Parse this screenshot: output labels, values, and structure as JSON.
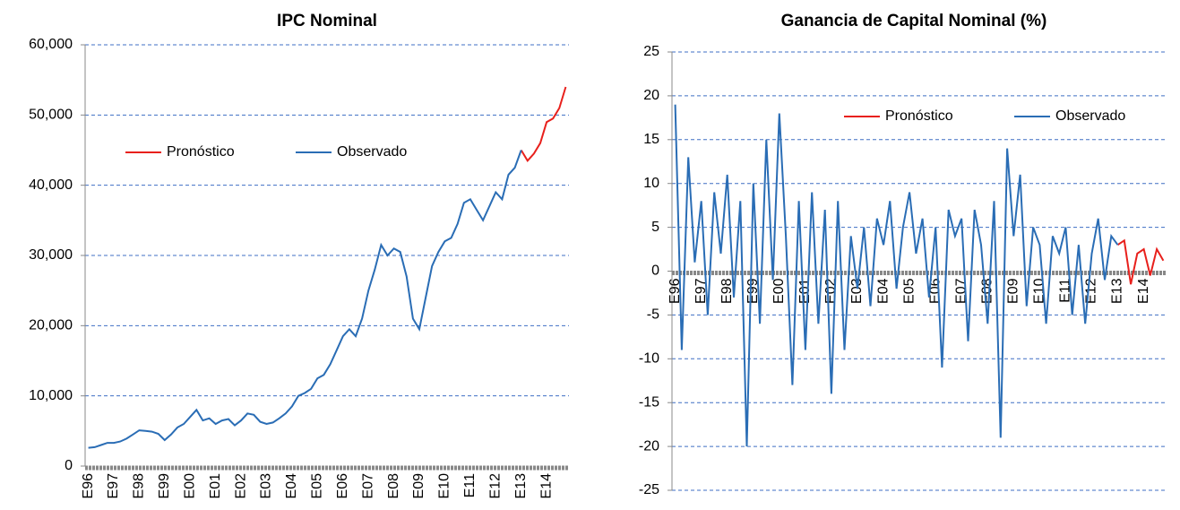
{
  "chart_data": [
    {
      "type": "line",
      "title": "IPC Nominal",
      "categories": [
        "E96",
        null,
        null,
        null,
        "E97",
        null,
        null,
        null,
        "E98",
        null,
        null,
        null,
        "E99",
        null,
        null,
        null,
        "E00",
        null,
        null,
        null,
        "E01",
        null,
        null,
        null,
        "E02",
        null,
        null,
        null,
        "E03",
        null,
        null,
        null,
        "E04",
        null,
        null,
        null,
        "E05",
        null,
        null,
        null,
        "E06",
        null,
        null,
        null,
        "E07",
        null,
        null,
        null,
        "E08",
        null,
        null,
        null,
        "E09",
        null,
        null,
        null,
        "E10",
        null,
        null,
        null,
        "E11",
        null,
        null,
        null,
        "E12",
        null,
        null,
        null,
        "E13",
        null,
        null,
        null,
        "E14",
        null,
        null,
        null
      ],
      "series": [
        {
          "name": "Pronóstico",
          "color": "#e8201c",
          "values": [
            null,
            null,
            null,
            null,
            null,
            null,
            null,
            null,
            null,
            null,
            null,
            null,
            null,
            null,
            null,
            null,
            null,
            null,
            null,
            null,
            null,
            null,
            null,
            null,
            null,
            null,
            null,
            null,
            null,
            null,
            null,
            null,
            null,
            null,
            null,
            null,
            null,
            null,
            null,
            null,
            null,
            null,
            null,
            null,
            null,
            null,
            null,
            null,
            null,
            null,
            null,
            null,
            null,
            null,
            null,
            null,
            null,
            null,
            null,
            null,
            null,
            null,
            null,
            null,
            null,
            null,
            null,
            null,
            45000,
            43500,
            44500,
            46000,
            49000,
            49500,
            51000,
            54000
          ]
        },
        {
          "name": "Observado",
          "color": "#2a6db5",
          "values": [
            2600,
            2700,
            3000,
            3300,
            3300,
            3500,
            3900,
            4500,
            5100,
            5000,
            4900,
            4600,
            3700,
            4500,
            5500,
            6000,
            7000,
            8000,
            6500,
            6800,
            6000,
            6500,
            6700,
            5800,
            6500,
            7500,
            7300,
            6300,
            6000,
            6200,
            6800,
            7500,
            8500,
            10000,
            10400,
            11000,
            12500,
            13000,
            14500,
            16500,
            18500,
            19500,
            18500,
            21000,
            25000,
            28000,
            31500,
            30000,
            31000,
            30500,
            27000,
            21000,
            19500,
            24000,
            28500,
            30500,
            32000,
            32500,
            34500,
            37500,
            38000,
            36500,
            35000,
            37000,
            39000,
            38000,
            41500,
            42500,
            45000,
            null,
            null,
            null,
            null,
            null,
            null,
            null
          ]
        }
      ],
      "ylim": [
        0,
        60000
      ],
      "yticks": [
        0,
        {
          "value": 10000,
          "label": "10,000"
        },
        {
          "value": 20000,
          "label": "20,000"
        },
        {
          "value": 30000,
          "label": "30,000"
        },
        {
          "value": 40000,
          "label": "40,000"
        },
        {
          "value": 50000,
          "label": "50,000"
        },
        {
          "value": 60000,
          "label": "60,000"
        }
      ],
      "grid": true,
      "legend": "upper left"
    },
    {
      "type": "line",
      "title": "Ganancia de Capital Nominal (%)",
      "categories": [
        "E96",
        null,
        null,
        null,
        "E97",
        null,
        null,
        null,
        "E98",
        null,
        null,
        null,
        "E99",
        null,
        null,
        null,
        "E00",
        null,
        null,
        null,
        "E01",
        null,
        null,
        null,
        "E02",
        null,
        null,
        null,
        "E03",
        null,
        null,
        null,
        "E04",
        null,
        null,
        null,
        "E05",
        null,
        null,
        null,
        "E06",
        null,
        null,
        null,
        "E07",
        null,
        null,
        null,
        "E08",
        null,
        null,
        null,
        "E09",
        null,
        null,
        null,
        "E10",
        null,
        null,
        null,
        "E11",
        null,
        null,
        null,
        "E12",
        null,
        null,
        null,
        "E13",
        null,
        null,
        null,
        "E14",
        null,
        null,
        null
      ],
      "series": [
        {
          "name": "Pronóstico",
          "color": "#e8201c",
          "values": [
            null,
            null,
            null,
            null,
            null,
            null,
            null,
            null,
            null,
            null,
            null,
            null,
            null,
            null,
            null,
            null,
            null,
            null,
            null,
            null,
            null,
            null,
            null,
            null,
            null,
            null,
            null,
            null,
            null,
            null,
            null,
            null,
            null,
            null,
            null,
            null,
            null,
            null,
            null,
            null,
            null,
            null,
            null,
            null,
            null,
            null,
            null,
            null,
            null,
            null,
            null,
            null,
            null,
            null,
            null,
            null,
            null,
            null,
            null,
            null,
            null,
            null,
            null,
            null,
            null,
            null,
            null,
            null,
            3,
            3.5,
            -1.5,
            2,
            2.5,
            -0.5,
            2.5,
            1.2
          ]
        },
        {
          "name": "Observado",
          "color": "#2a6db5",
          "values": [
            19,
            -9,
            13,
            1,
            8,
            -5,
            9,
            2,
            11,
            -3,
            8,
            -20,
            10,
            -6,
            15,
            -1,
            18,
            4,
            -13,
            8,
            -9,
            9,
            -6,
            7,
            -14,
            8,
            -9,
            4,
            -2,
            5,
            -4,
            6,
            3,
            8,
            -2,
            5,
            9,
            2,
            6,
            -3,
            5,
            -11,
            7,
            4,
            6,
            -8,
            7,
            3,
            -6,
            8,
            -19,
            14,
            4,
            11,
            -4,
            5,
            3,
            -6,
            4,
            2,
            5,
            -5,
            3,
            -6,
            2,
            6,
            -1,
            4,
            3,
            null,
            null,
            null,
            null,
            null,
            null,
            null
          ]
        }
      ],
      "ylim": [
        -25,
        25
      ],
      "yticks": [
        -25,
        -20,
        -15,
        -10,
        -5,
        0,
        5,
        10,
        15,
        20,
        25
      ],
      "grid": true,
      "legend": "upper right"
    }
  ]
}
